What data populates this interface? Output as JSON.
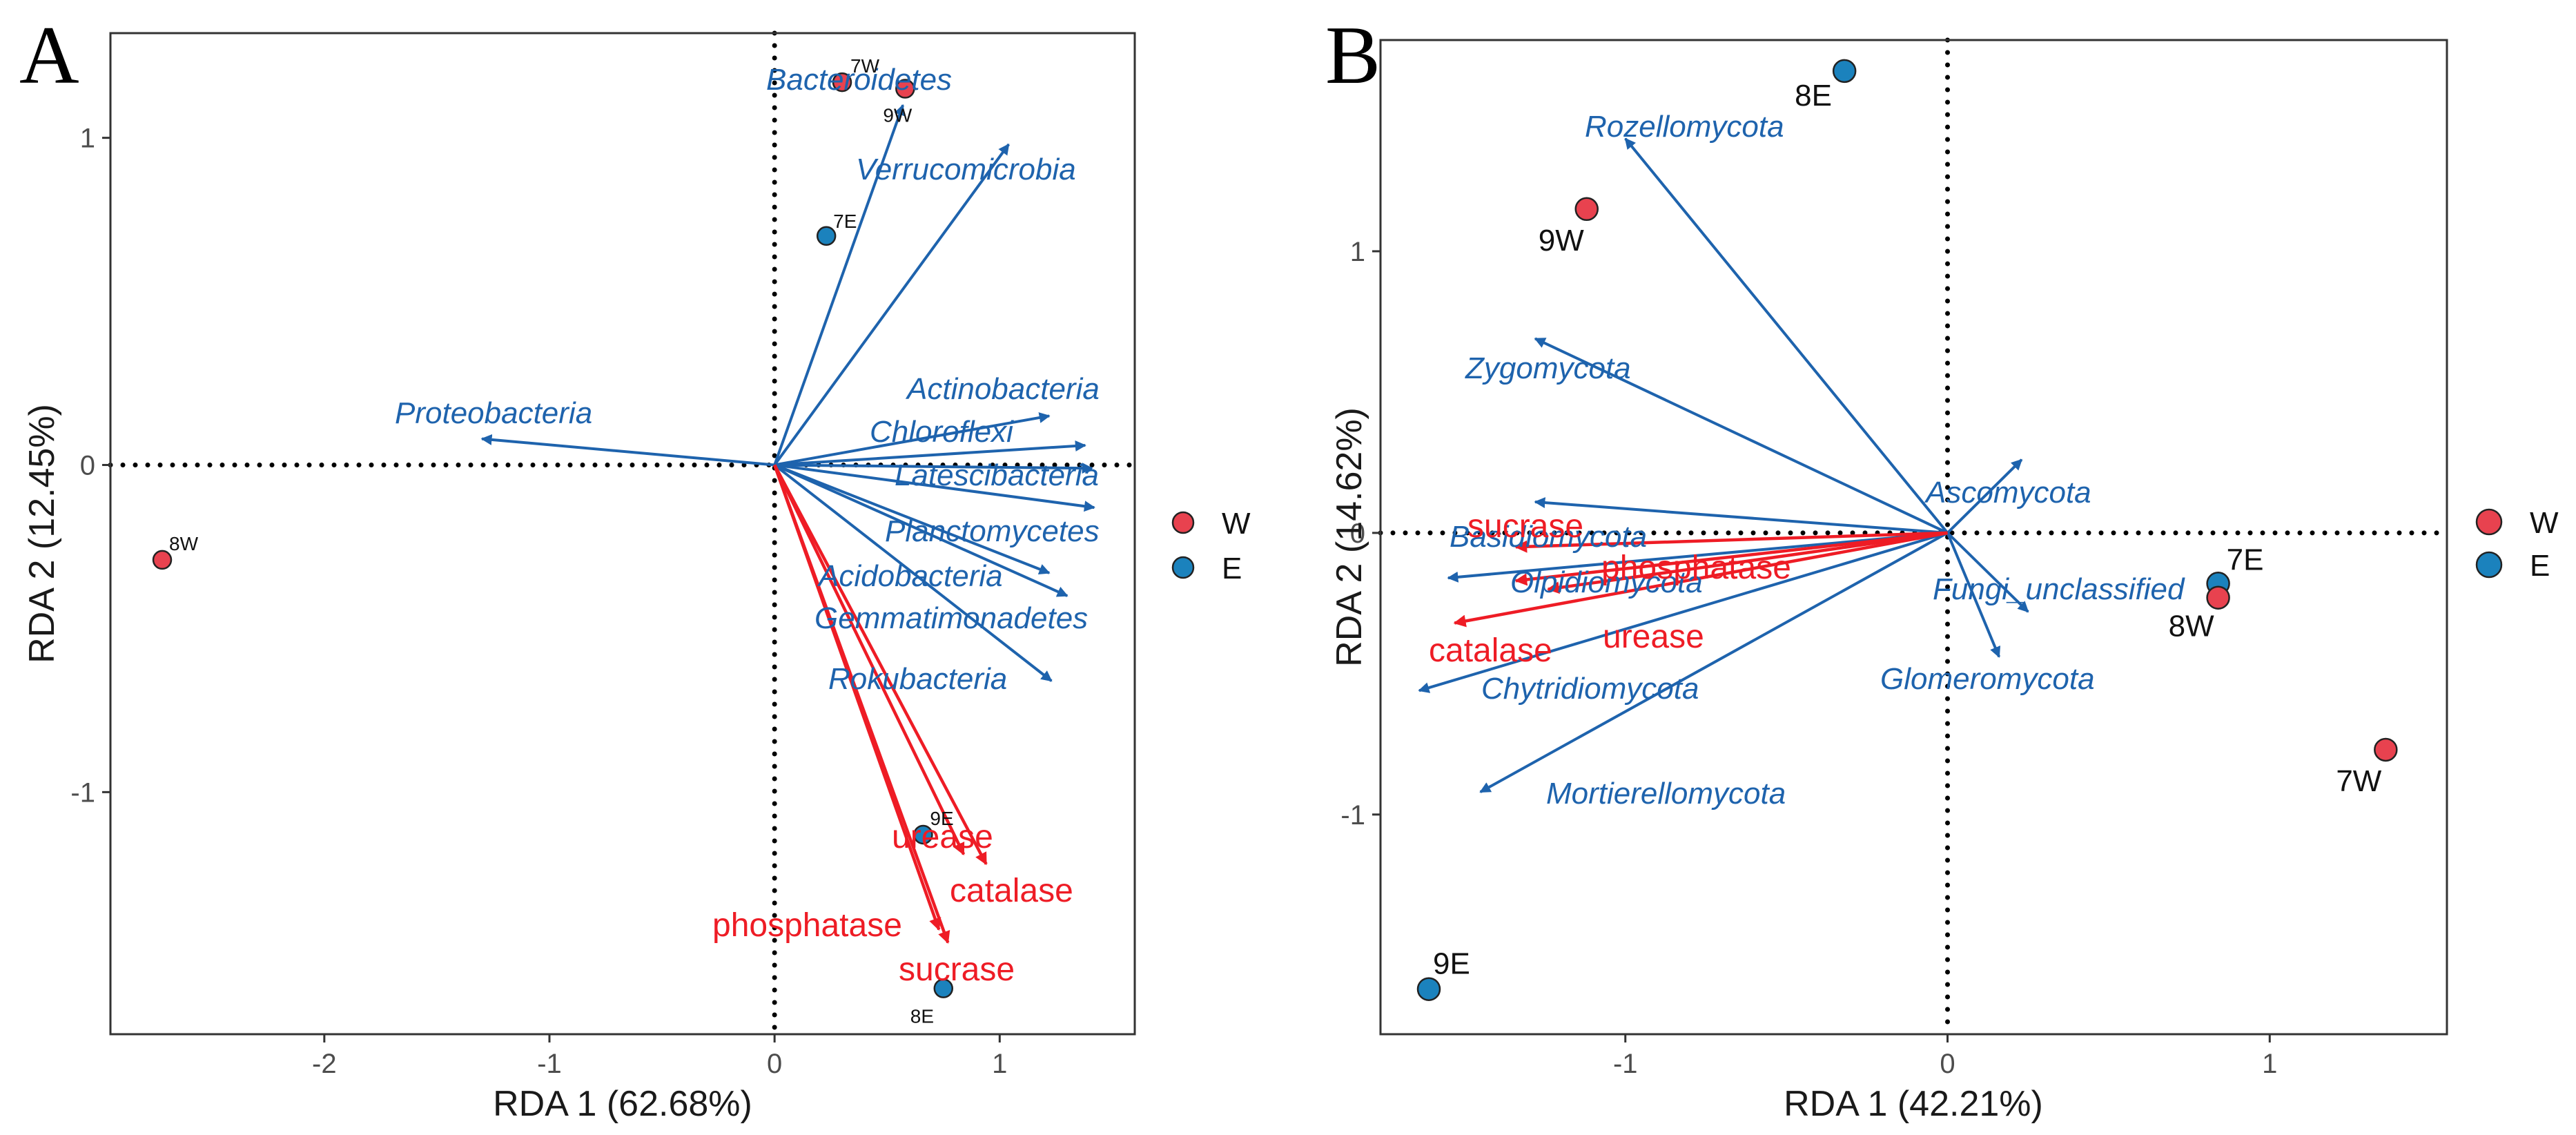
{
  "legend": {
    "groups": [
      {
        "key": "W",
        "label": "W",
        "color": "#e8424f"
      },
      {
        "key": "E",
        "label": "E",
        "color": "#1b82bd"
      }
    ]
  },
  "colors": {
    "species": "#1e63ad",
    "env": "#ee1c25",
    "frame": "#333333",
    "tick": "#4d4d4d",
    "zero_line": "#000000",
    "sample_label": "#111111"
  },
  "chart_data": [
    {
      "type": "scatter",
      "subtype": "rda-biplot",
      "panel_label": "A",
      "xlabel": "RDA 1 (62.68%)",
      "ylabel": "RDA 2 (12.45%)",
      "xlim": [
        -2.95,
        1.6
      ],
      "ylim": [
        -1.74,
        1.32
      ],
      "xticks": [
        -2,
        -1,
        0,
        1
      ],
      "yticks": [
        -1,
        0,
        1
      ],
      "grid": false,
      "legend_position": "right",
      "samples": [
        {
          "id": "7W",
          "group": "W",
          "x": 0.3,
          "y": 1.17
        },
        {
          "id": "9W",
          "group": "W",
          "x": 0.58,
          "y": 1.15
        },
        {
          "id": "7E",
          "group": "E",
          "x": 0.23,
          "y": 0.7
        },
        {
          "id": "8W",
          "group": "W",
          "x": -2.72,
          "y": -0.29
        },
        {
          "id": "9E",
          "group": "E",
          "x": 0.66,
          "y": -1.13
        },
        {
          "id": "8E",
          "group": "E",
          "x": 0.75,
          "y": -1.6
        }
      ],
      "species_vectors": [
        {
          "name": "Bacteroidetes",
          "x": 0.57,
          "y": 1.1
        },
        {
          "name": "Verrucomicrobia",
          "x": 1.04,
          "y": 0.98
        },
        {
          "name": "Proteobacteria",
          "x": -1.3,
          "y": 0.08
        },
        {
          "name": "Actinobacteria",
          "x": 1.22,
          "y": 0.15
        },
        {
          "name": "Chloroflexi",
          "x": 1.38,
          "y": 0.06
        },
        {
          "name": "Latescibacteria",
          "x": 1.41,
          "y": -0.01
        },
        {
          "name": "Planctomycetes",
          "x": 1.42,
          "y": -0.13
        },
        {
          "name": "Acidobacteria",
          "x": 1.22,
          "y": -0.33
        },
        {
          "name": "Gemmatimonadetes",
          "x": 1.3,
          "y": -0.4
        },
        {
          "name": "Rokubacteria",
          "x": 1.23,
          "y": -0.66
        }
      ],
      "env_vectors": [
        {
          "name": "urease",
          "x": 0.84,
          "y": -1.19
        },
        {
          "name": "catalase",
          "x": 0.94,
          "y": -1.22
        },
        {
          "name": "phosphatase",
          "x": 0.73,
          "y": -1.42
        },
        {
          "name": "sucrase",
          "x": 0.77,
          "y": -1.46
        }
      ]
    },
    {
      "type": "scatter",
      "subtype": "rda-biplot",
      "panel_label": "B",
      "xlabel": "RDA 1 (42.21%)",
      "ylabel": "RDA 2 (14.62%)",
      "xlim": [
        -1.76,
        1.55
      ],
      "ylim": [
        -1.78,
        1.75
      ],
      "xticks": [
        -1,
        0,
        1
      ],
      "yticks": [
        -1,
        0,
        1
      ],
      "grid": false,
      "legend_position": "right",
      "samples": [
        {
          "id": "8E",
          "group": "E",
          "x": -0.32,
          "y": 1.64
        },
        {
          "id": "9W",
          "group": "W",
          "x": -1.12,
          "y": 1.15
        },
        {
          "id": "7E",
          "group": "E",
          "x": 0.84,
          "y": -0.18
        },
        {
          "id": "8W",
          "group": "W",
          "x": 0.84,
          "y": -0.23
        },
        {
          "id": "7W",
          "group": "W",
          "x": 1.36,
          "y": -0.77
        },
        {
          "id": "9E",
          "group": "E",
          "x": -1.61,
          "y": -1.62
        }
      ],
      "species_vectors": [
        {
          "name": "Rozellomycota",
          "x": -1.0,
          "y": 1.4
        },
        {
          "name": "Zygomycota",
          "x": -1.28,
          "y": 0.69
        },
        {
          "name": "Ascomycota",
          "x": 0.23,
          "y": 0.26
        },
        {
          "name": "Basidiomycota",
          "x": -1.28,
          "y": 0.11
        },
        {
          "name": "Olpidiomycota",
          "x": -1.55,
          "y": -0.16
        },
        {
          "name": "Fungi_unclassified",
          "x": 0.25,
          "y": -0.28
        },
        {
          "name": "Glomeromycota",
          "x": 0.16,
          "y": -0.44
        },
        {
          "name": "Chytridiomycota",
          "x": -1.64,
          "y": -0.56
        },
        {
          "name": "Mortierellomycota",
          "x": -1.45,
          "y": -0.92
        }
      ],
      "env_vectors": [
        {
          "name": "sucrase",
          "x": -1.34,
          "y": -0.05
        },
        {
          "name": "phosphatase",
          "x": -1.24,
          "y": -0.2
        },
        {
          "name": "urease",
          "x": -1.34,
          "y": -0.17
        },
        {
          "name": "catalase",
          "x": -1.53,
          "y": -0.32
        }
      ]
    }
  ]
}
